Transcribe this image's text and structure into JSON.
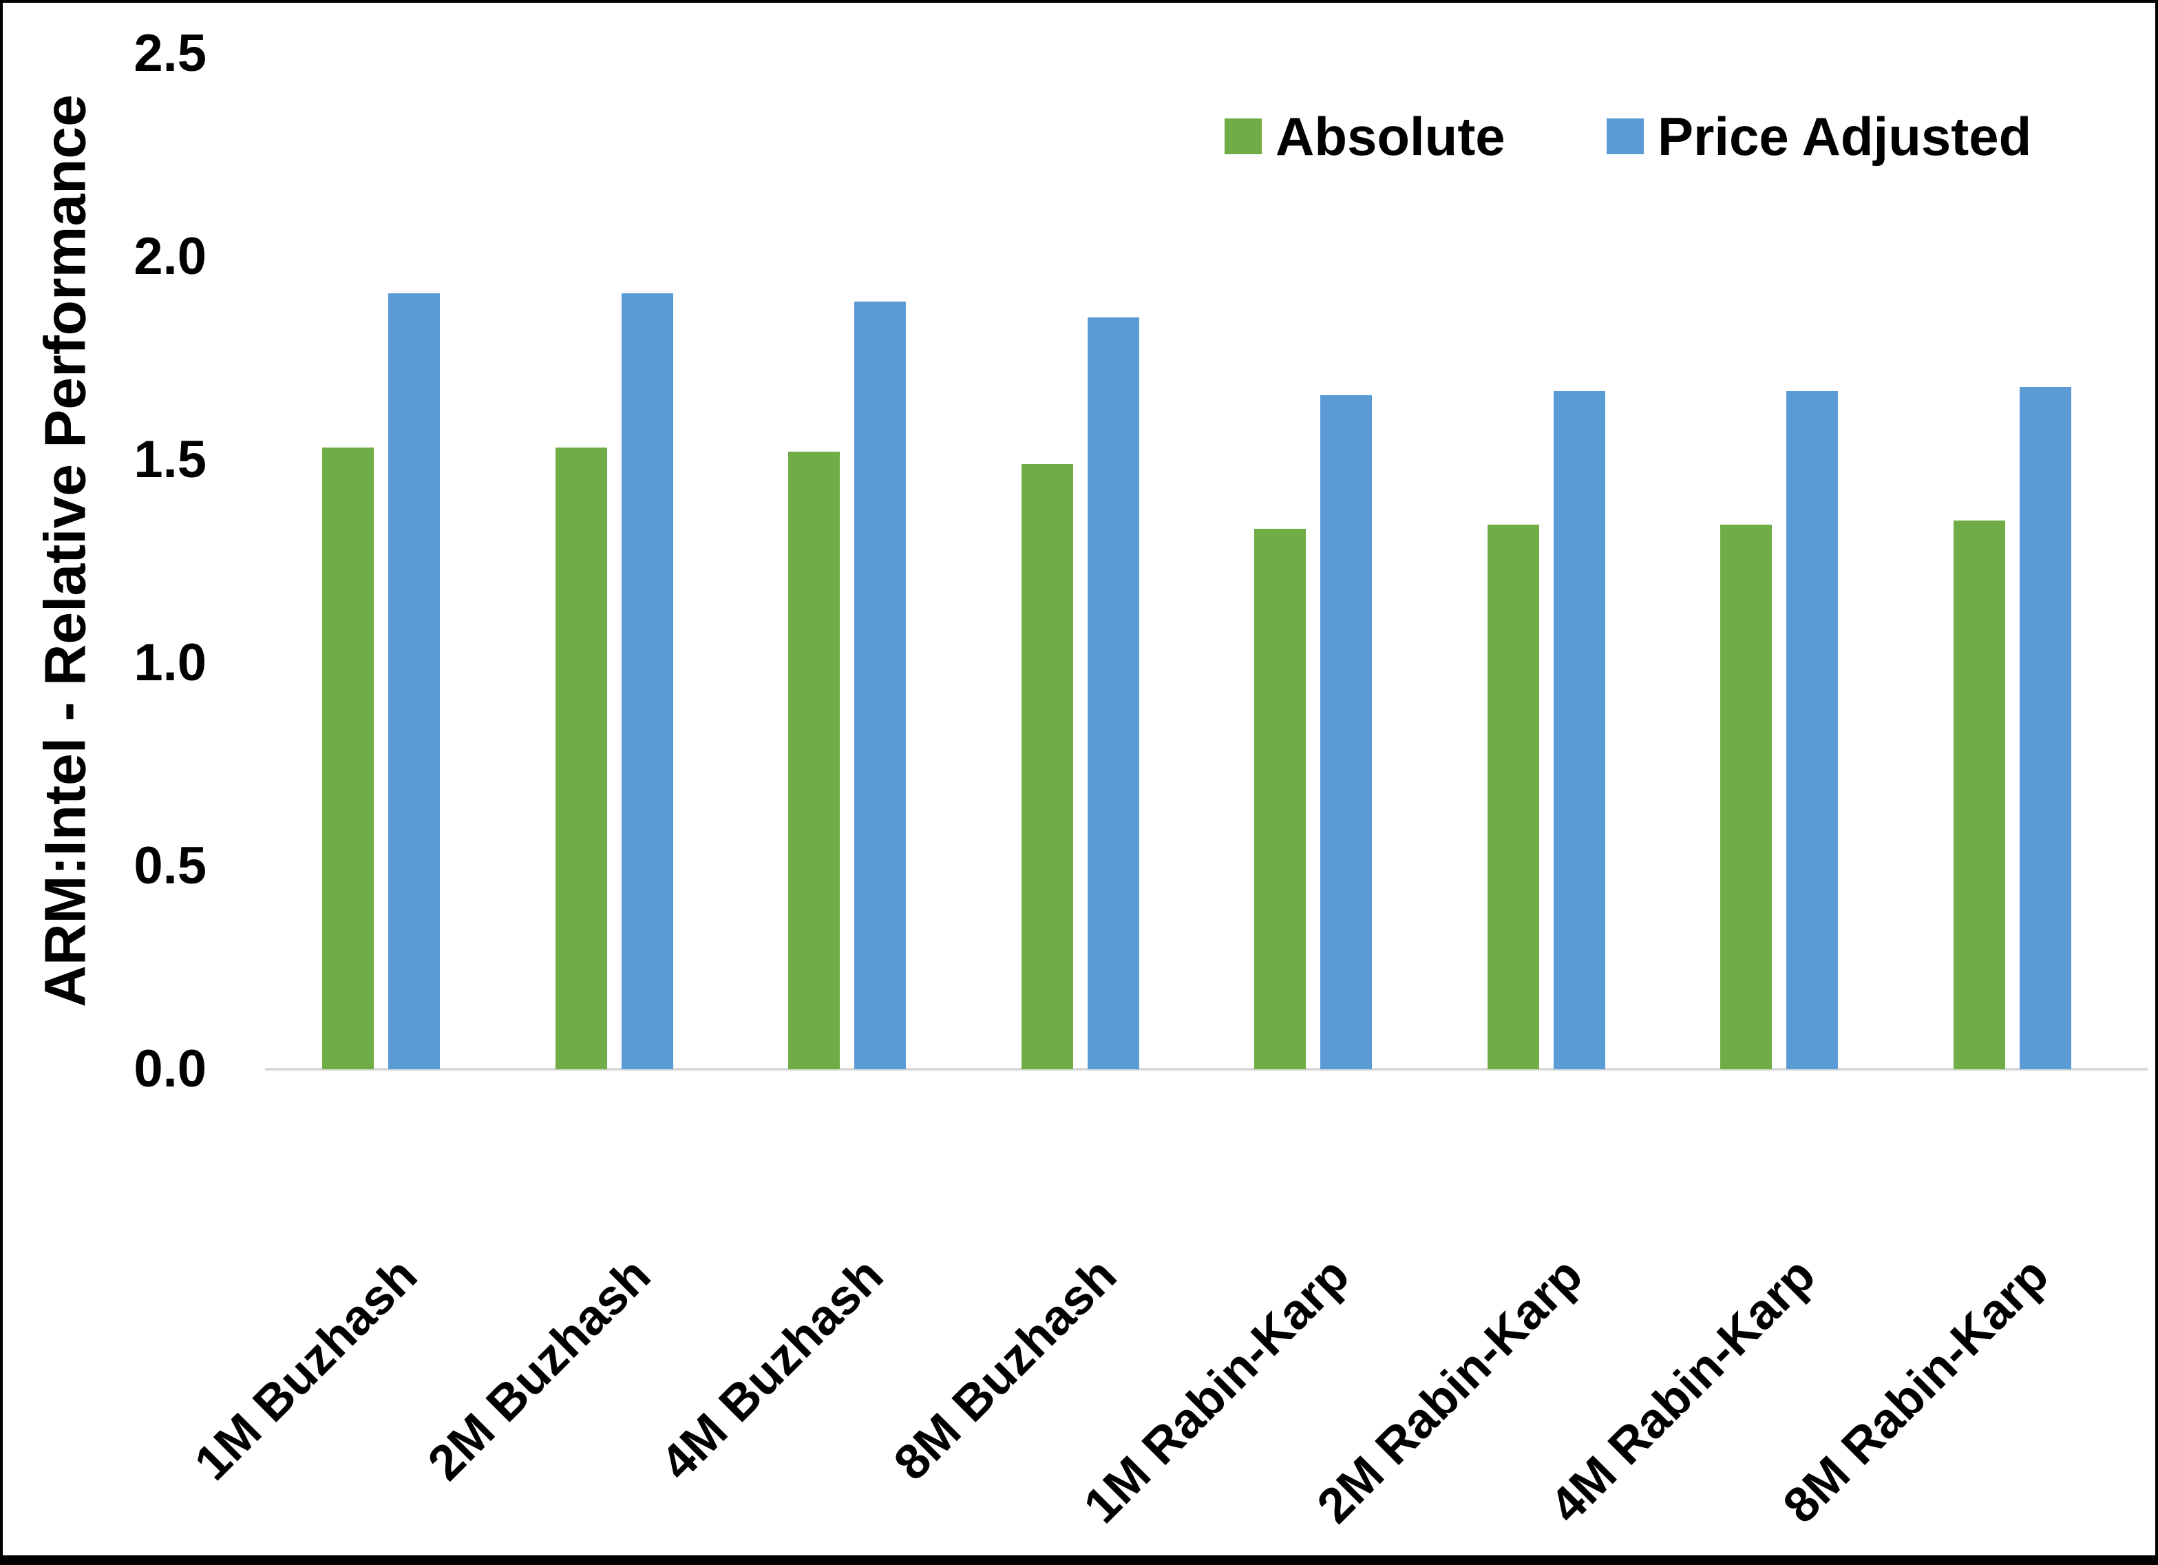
{
  "chart_data": {
    "type": "bar",
    "title": "",
    "xlabel": "",
    "ylabel": "ARM:Intel - Relative Performance",
    "categories": [
      "1M Buzhash",
      "2M Buzhash",
      "4M Buzhash",
      "8M Buzhash",
      "1M Rabin-Karp",
      "2M Rabin-Karp",
      "4M Rabin-Karp",
      "8M Rabin-Karp"
    ],
    "series": [
      {
        "name": "Absolute",
        "color": "#70AD47",
        "values": [
          1.53,
          1.53,
          1.52,
          1.49,
          1.33,
          1.34,
          1.34,
          1.35
        ]
      },
      {
        "name": "Price Adjusted",
        "color": "#5B9BD5",
        "values": [
          1.91,
          1.91,
          1.89,
          1.85,
          1.66,
          1.67,
          1.67,
          1.68
        ]
      }
    ],
    "ylim": [
      0.0,
      2.5
    ],
    "yticks": [
      0.0,
      0.5,
      1.0,
      1.5,
      2.0,
      2.5
    ],
    "ytick_labels": [
      "0.0",
      "0.5",
      "1.0",
      "1.5",
      "2.0",
      "2.5"
    ],
    "grid": false,
    "legend_position": "top-right",
    "axis_line_color": "#D9D9D9",
    "text_color": "#000000",
    "background_color": "#FFFFFF",
    "frame_color": "#000000"
  }
}
